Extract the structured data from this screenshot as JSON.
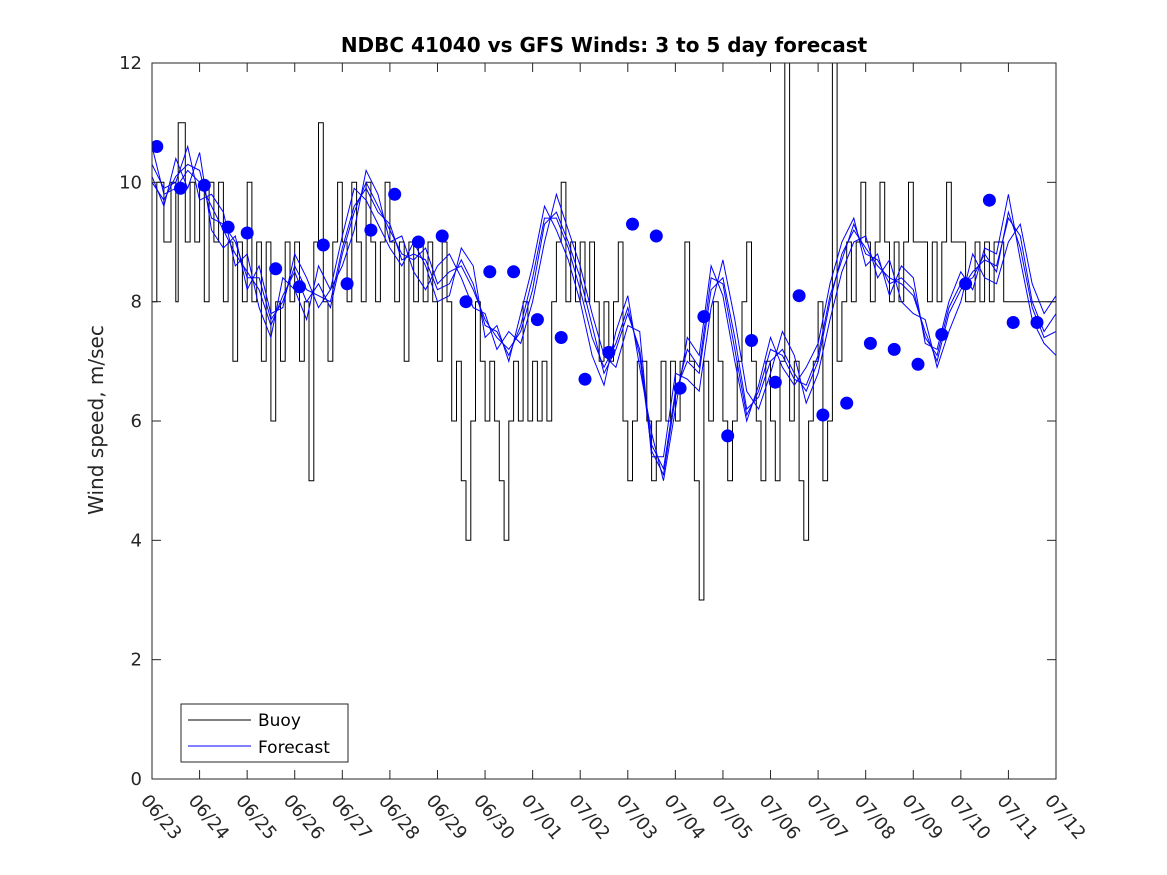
{
  "chart_data": {
    "type": "line",
    "title": "NDBC 41040 vs GFS Winds: 3 to 5 day forecast",
    "xlabel": "",
    "ylabel": "Wind speed, m/sec",
    "xlim": [
      "06/23",
      "07/12"
    ],
    "ylim": [
      0,
      12
    ],
    "x_ticks": [
      "06/23",
      "06/24",
      "06/25",
      "06/26",
      "06/27",
      "06/28",
      "06/29",
      "06/30",
      "07/01",
      "07/02",
      "07/03",
      "07/04",
      "07/05",
      "07/06",
      "07/07",
      "07/08",
      "07/09",
      "07/10",
      "07/11",
      "07/12"
    ],
    "y_ticks": [
      0,
      2,
      4,
      6,
      8,
      10,
      12
    ],
    "grid": false,
    "legend": {
      "position": "bottom-left",
      "entries": [
        "Buoy",
        "Forecast"
      ]
    },
    "colors": {
      "buoy": "#000000",
      "forecast": "#0000ff",
      "markers": "#0000ff"
    },
    "series": [
      {
        "name": "Buoy",
        "kind": "step-line",
        "x_days": [
          0.0,
          0.1,
          0.25,
          0.4,
          0.5,
          0.55,
          0.7,
          0.8,
          0.9,
          1.0,
          1.1,
          1.2,
          1.3,
          1.4,
          1.5,
          1.6,
          1.7,
          1.8,
          1.9,
          2.0,
          2.1,
          2.2,
          2.3,
          2.4,
          2.5,
          2.6,
          2.7,
          2.8,
          2.9,
          3.0,
          3.1,
          3.2,
          3.3,
          3.4,
          3.5,
          3.6,
          3.7,
          3.8,
          3.9,
          4.0,
          4.1,
          4.2,
          4.3,
          4.4,
          4.5,
          4.6,
          4.7,
          4.8,
          4.9,
          5.0,
          5.1,
          5.2,
          5.3,
          5.4,
          5.5,
          5.6,
          5.7,
          5.8,
          5.9,
          6.0,
          6.1,
          6.2,
          6.3,
          6.4,
          6.5,
          6.6,
          6.7,
          6.8,
          6.9,
          7.0,
          7.1,
          7.2,
          7.3,
          7.4,
          7.5,
          7.6,
          7.7,
          7.8,
          7.9,
          8.0,
          8.1,
          8.2,
          8.3,
          8.4,
          8.5,
          8.6,
          8.7,
          8.8,
          8.9,
          9.0,
          9.1,
          9.2,
          9.3,
          9.4,
          9.5,
          9.6,
          9.7,
          9.8,
          9.9,
          10.0,
          10.1,
          10.2,
          10.3,
          10.4,
          10.5,
          10.6,
          10.7,
          10.8,
          10.9,
          11.0,
          11.1,
          11.2,
          11.3,
          11.4,
          11.5,
          11.6,
          11.7,
          11.8,
          11.9,
          12.0,
          12.1,
          12.2,
          12.3,
          12.4,
          12.5,
          12.6,
          12.7,
          12.8,
          12.9,
          13.0,
          13.1,
          13.2,
          13.3,
          13.4,
          13.5,
          13.6,
          13.7,
          13.8,
          13.9,
          14.0,
          14.1,
          14.2,
          14.3,
          14.4,
          14.5,
          14.6,
          14.7,
          14.8,
          14.9,
          15.0,
          15.1,
          15.2,
          15.3,
          15.4,
          15.5,
          15.6,
          15.7,
          15.8,
          15.9,
          16.0,
          16.1,
          16.2,
          16.3,
          16.4,
          16.5,
          16.6,
          16.7,
          16.8,
          16.9,
          17.0,
          17.1,
          17.2,
          17.3,
          17.4,
          17.5,
          17.6,
          17.7,
          17.8,
          17.9,
          18.0,
          18.1,
          18.2,
          18.3,
          18.4,
          18.5,
          18.6,
          18.7,
          18.8,
          18.9,
          19.0
        ],
        "values": [
          8,
          10,
          9,
          10,
          8,
          11,
          9,
          10,
          9,
          10,
          8,
          10,
          9,
          10,
          8,
          9,
          7,
          9,
          8,
          10,
          8,
          9,
          7,
          9,
          6,
          8,
          7,
          9,
          8,
          9,
          7,
          8,
          5,
          9,
          11,
          8,
          7,
          9,
          10,
          9,
          8,
          10,
          9,
          8,
          10,
          9,
          8,
          9,
          10,
          9,
          8,
          9,
          7,
          9,
          8,
          9,
          8,
          9,
          8,
          7,
          9,
          8,
          6,
          7,
          5,
          4,
          6,
          8,
          7,
          6,
          7,
          6,
          5,
          4,
          6,
          7,
          6,
          8,
          6,
          7,
          6,
          7,
          6,
          8,
          9,
          10,
          8,
          9,
          8,
          9,
          8,
          9,
          8,
          7,
          8,
          7,
          8,
          9,
          6,
          5,
          6,
          7,
          7,
          6,
          5,
          6,
          7,
          6,
          7,
          6,
          7,
          9,
          7,
          5,
          3,
          7,
          6,
          8,
          7,
          6,
          5,
          6,
          7,
          8,
          9,
          7,
          6,
          5,
          7,
          6,
          5,
          7,
          12,
          6,
          7,
          5,
          4,
          6,
          7,
          8,
          5,
          6,
          12,
          7,
          8,
          9,
          8,
          9,
          10,
          9,
          8,
          9,
          10,
          9,
          8,
          9,
          8,
          9,
          10,
          9,
          9,
          9,
          8,
          9,
          8,
          9,
          10,
          9,
          9,
          9,
          8,
          8,
          9,
          8,
          9,
          8,
          9,
          9,
          8,
          8,
          8,
          8,
          8,
          8,
          8,
          8,
          8,
          8,
          8,
          8
        ]
      },
      {
        "name": "Forecast",
        "kind": "multi-line",
        "x_days": [
          0.0,
          0.25,
          0.5,
          0.75,
          1.0,
          1.25,
          1.5,
          1.75,
          2.0,
          2.25,
          2.5,
          2.75,
          3.0,
          3.25,
          3.5,
          3.75,
          4.0,
          4.25,
          4.5,
          4.75,
          5.0,
          5.25,
          5.5,
          5.75,
          6.0,
          6.25,
          6.5,
          6.75,
          7.0,
          7.25,
          7.5,
          7.75,
          8.0,
          8.25,
          8.5,
          8.75,
          9.0,
          9.25,
          9.5,
          9.75,
          10.0,
          10.25,
          10.5,
          10.75,
          11.0,
          11.25,
          11.5,
          11.75,
          12.0,
          12.25,
          12.5,
          12.75,
          13.0,
          13.25,
          13.5,
          13.75,
          14.0,
          14.25,
          14.5,
          14.75,
          15.0,
          15.25,
          15.5,
          15.75,
          16.0,
          16.25,
          16.5,
          16.75,
          17.0,
          17.25,
          17.5,
          17.75,
          18.0,
          18.25,
          18.5,
          18.75,
          19.0
        ],
        "runs": [
          [
            10.6,
            9.8,
            9.9,
            10.2,
            10.0,
            9.6,
            9.2,
            8.8,
            8.5,
            8.2,
            7.6,
            8.1,
            8.5,
            8.0,
            8.3,
            7.9,
            8.8,
            9.5,
            10.0,
            9.6,
            9.2,
            8.8,
            8.7,
            8.9,
            8.3,
            8.5,
            8.6,
            8.2,
            7.7,
            7.4,
            7.2,
            7.5,
            8.2,
            9.3,
            9.5,
            9.0,
            8.4,
            7.6,
            6.8,
            7.2,
            7.8,
            7.2,
            5.6,
            5.2,
            6.5,
            7.0,
            6.8,
            8.2,
            8.4,
            7.4,
            6.2,
            6.4,
            7.0,
            7.2,
            6.8,
            6.5,
            7.0,
            8.0,
            8.8,
            9.2,
            8.9,
            8.6,
            8.4,
            8.3,
            8.1,
            7.5,
            7.0,
            7.8,
            8.2,
            8.5,
            8.7,
            8.6,
            9.4,
            9.1,
            8.0,
            7.5,
            7.8
          ],
          [
            10.1,
            9.6,
            10.4,
            9.9,
            10.5,
            9.2,
            8.9,
            9.1,
            8.2,
            8.6,
            7.8,
            7.9,
            8.8,
            8.4,
            7.9,
            8.2,
            9.1,
            9.9,
            9.7,
            9.3,
            8.9,
            8.6,
            9.0,
            8.6,
            8.0,
            8.1,
            8.9,
            8.6,
            7.4,
            7.6,
            7.0,
            7.8,
            8.6,
            9.6,
            9.2,
            8.7,
            8.0,
            7.1,
            6.6,
            7.5,
            8.1,
            6.9,
            5.8,
            5.0,
            6.2,
            7.4,
            7.1,
            8.6,
            8.1,
            7.0,
            6.0,
            6.6,
            7.4,
            6.9,
            6.6,
            6.9,
            7.3,
            8.3,
            9.0,
            9.4,
            8.6,
            8.8,
            8.1,
            8.6,
            8.4,
            7.3,
            7.2,
            8.0,
            8.5,
            8.2,
            8.9,
            8.8,
            9.8,
            8.7,
            7.7,
            7.3,
            7.1
          ],
          [
            10.3,
            9.9,
            10.0,
            10.6,
            9.7,
            9.8,
            9.5,
            8.6,
            8.8,
            7.9,
            7.4,
            8.4,
            8.2,
            7.7,
            8.6,
            8.2,
            8.6,
            9.2,
            10.2,
            9.8,
            9.0,
            9.1,
            8.5,
            8.2,
            8.6,
            8.8,
            8.4,
            7.9,
            7.8,
            7.2,
            7.5,
            7.3,
            8.0,
            9.0,
            9.8,
            9.2,
            8.6,
            7.8,
            7.1,
            6.9,
            7.6,
            7.5,
            5.4,
            5.4,
            6.8,
            6.7,
            6.5,
            7.9,
            8.7,
            7.7,
            6.5,
            6.2,
            6.8,
            7.5,
            7.1,
            6.3,
            6.8,
            7.7,
            8.5,
            9.0,
            9.1,
            8.4,
            8.7,
            8.0,
            7.8,
            7.7,
            6.9,
            7.5,
            8.0,
            8.8,
            8.4,
            8.3,
            9.0,
            9.3,
            8.3,
            7.8,
            8.1
          ],
          [
            10.0,
            9.7,
            10.1,
            10.3,
            10.2,
            9.4,
            9.3,
            9.0,
            8.4,
            8.4,
            7.7,
            8.0,
            8.6,
            8.2,
            8.1,
            8.0,
            8.9,
            9.6,
            9.9,
            9.5,
            9.3,
            8.7,
            8.8,
            8.7,
            8.2,
            8.3,
            8.7,
            8.3,
            7.6,
            7.5,
            7.1,
            7.6,
            8.4,
            9.4,
            9.4,
            8.9,
            8.2,
            7.4,
            6.9,
            7.3,
            7.9,
            7.1,
            5.5,
            5.1,
            6.4,
            7.2,
            6.9,
            8.4,
            8.3,
            7.2,
            6.1,
            6.5,
            7.2,
            7.1,
            6.7,
            6.6,
            7.1,
            8.1,
            8.7,
            9.3,
            8.8,
            8.7,
            8.3,
            8.4,
            8.2,
            7.4,
            7.1,
            7.9,
            8.3,
            8.4,
            8.8,
            8.5,
            9.5,
            8.9,
            7.9,
            7.4,
            7.5
          ]
        ]
      },
      {
        "name": "Forecast markers",
        "kind": "scatter",
        "x_days": [
          0.1,
          0.6,
          1.1,
          1.6,
          2.0,
          2.6,
          3.1,
          3.6,
          4.1,
          4.6,
          5.1,
          5.6,
          6.1,
          6.6,
          7.1,
          7.6,
          8.1,
          8.6,
          9.1,
          9.6,
          10.1,
          10.6,
          11.1,
          11.6,
          12.1,
          12.6,
          13.1,
          13.6,
          14.1,
          14.6,
          15.1,
          15.6,
          16.1,
          16.6,
          17.1,
          17.6,
          18.1,
          18.6
        ],
        "values": [
          10.6,
          9.9,
          9.95,
          9.25,
          9.15,
          8.55,
          8.25,
          8.95,
          8.3,
          9.2,
          9.8,
          9.0,
          9.1,
          8.0,
          8.5,
          8.5,
          7.7,
          7.4,
          6.7,
          7.15,
          9.3,
          9.1,
          6.55,
          7.75,
          5.75,
          7.35,
          6.65,
          8.1,
          6.1,
          6.3,
          7.3,
          7.2,
          6.95,
          7.45,
          8.3,
          9.7,
          7.65,
          7.65
        ]
      }
    ]
  }
}
